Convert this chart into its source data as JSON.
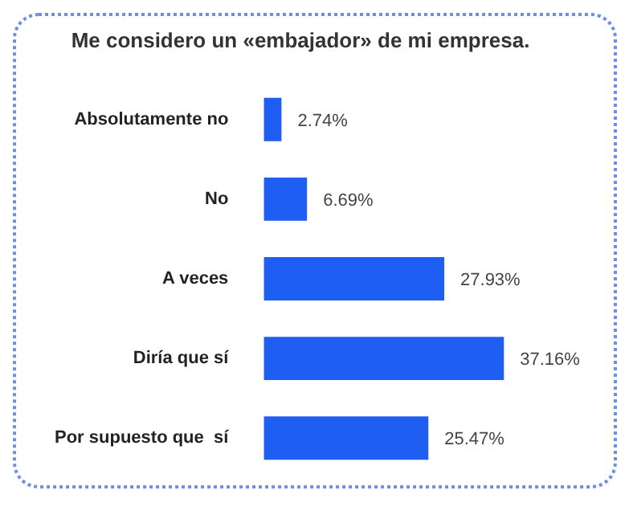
{
  "chart_data": {
    "type": "bar",
    "orientation": "horizontal",
    "tick_labels": "y",
    "title": "Me considero un «embajador» de mi empresa.",
    "categories": [
      "Absolutamente no",
      "No",
      "A veces",
      "Diría que sí",
      "Por supuesto que  sí"
    ],
    "values": [
      2.74,
      6.69,
      27.93,
      37.16,
      25.47
    ],
    "value_labels": [
      "2.74%",
      "6.69%",
      "27.93%",
      "37.16%",
      "25.47%"
    ],
    "color": "#1f5ef2"
  }
}
